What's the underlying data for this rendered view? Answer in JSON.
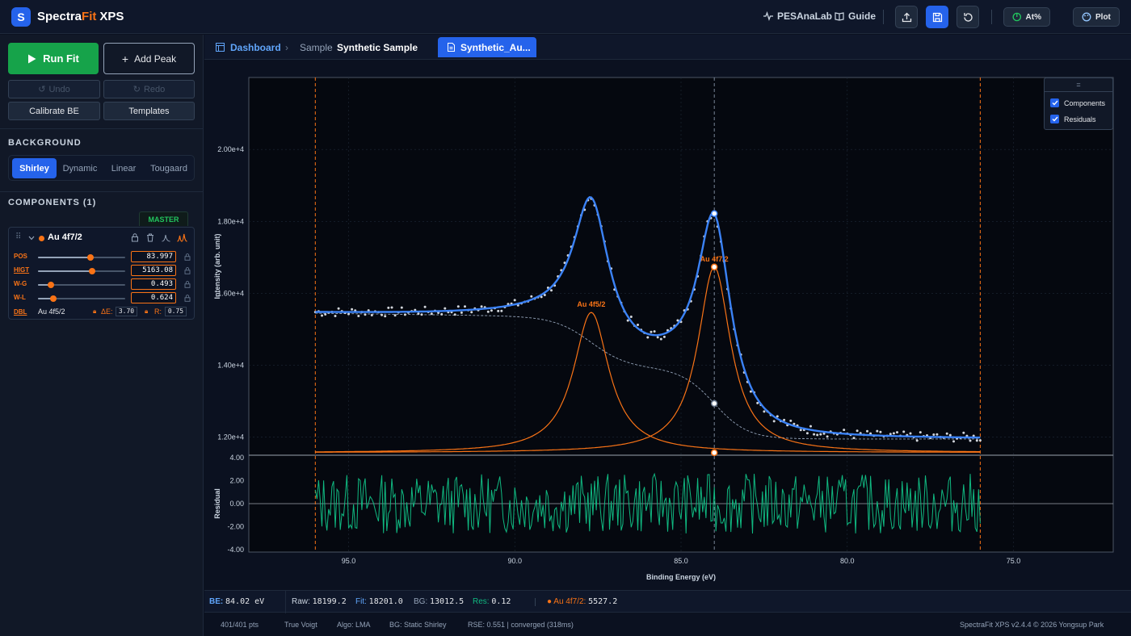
{
  "header": {
    "logo_letter": "S",
    "brand_main": "Spectra",
    "brand_fit": "Fit",
    "brand_suffix": "XPS",
    "links": [
      {
        "label": "PESAnaLab",
        "icon": "activity-icon"
      },
      {
        "label": "Guide",
        "icon": "book-icon"
      }
    ],
    "at_label": "At%",
    "plot_label": "Plot"
  },
  "sidebar": {
    "run_fit": "Run Fit",
    "add_peak": "Add Peak",
    "undo": "Undo",
    "redo": "Redo",
    "calibrate": "Calibrate BE",
    "templates": "Templates",
    "background_title": "BACKGROUND",
    "background_tabs": [
      "Shirley",
      "Dynamic",
      "Linear",
      "Tougaard"
    ],
    "background_active": "Shirley",
    "components_title": "COMPONENTS (1)",
    "master_label": "MASTER",
    "component": {
      "name": "Au 4f7/2",
      "color": "#f97316",
      "params": [
        {
          "label": "POS",
          "value": "83.997",
          "fraction": 0.6
        },
        {
          "label": "HIGT",
          "value": "5163.08",
          "fraction": 0.62
        },
        {
          "label": "W-G",
          "value": "0.493",
          "fraction": 0.15
        },
        {
          "label": "W-L",
          "value": "0.624",
          "fraction": 0.18
        }
      ],
      "dbl_label": "DBL",
      "dbl_name": "Au 4f5/2",
      "delta_e_label": "ΔE:",
      "delta_e": "3.70",
      "ratio_label": "R:",
      "ratio": "0.75"
    }
  },
  "tabs": {
    "dashboard": "Dashboard",
    "sample_label": "Sample",
    "sample_name": "Synthetic Sample",
    "file_tab": "Synthetic_Au..."
  },
  "legend": {
    "icon": "=",
    "items": [
      "Components",
      "Residuals"
    ]
  },
  "chart_data": {
    "type": "line",
    "xlabel": "Binding Energy (eV)",
    "ylabel": "Intensity (arb. unit)",
    "residual_ylabel": "Residual",
    "x_reversed": true,
    "xlim": [
      72,
      98
    ],
    "ylim": [
      11500,
      22000
    ],
    "residual_ylim": [
      -4.2,
      4.2
    ],
    "x_ticks": [
      "95.0",
      "90.0",
      "85.0",
      "80.0",
      "75.0"
    ],
    "y_ticks": [
      "1.20e+4",
      "1.40e+4",
      "1.60e+4",
      "1.80e+4",
      "2.00e+4"
    ],
    "residual_ticks": [
      "4.00",
      "2.00",
      "0.00",
      "-2.00",
      "-4.00"
    ],
    "range_markers": [
      96.0,
      76.0
    ],
    "cursor_x": 84.0,
    "components": [
      {
        "name": "Au 4f5/2",
        "center": 87.7,
        "height": 3900,
        "width": 0.65,
        "color": "#f97316"
      },
      {
        "name": "Au 4f7/2",
        "center": 84.0,
        "height": 5163,
        "width": 0.6,
        "color": "#f97316"
      }
    ],
    "background": {
      "type": "Shirley",
      "high": 15350,
      "low": 11950
    },
    "series": [
      {
        "name": "Fit",
        "color": "#3b82f6"
      },
      {
        "name": "Raw",
        "color": "#d1d5db"
      },
      {
        "name": "Background",
        "color": "#94a3b8"
      },
      {
        "name": "Residual",
        "color": "#10b981"
      }
    ]
  },
  "status": {
    "be_label": "BE:",
    "be_value": "84.02 eV",
    "raw_label": "Raw:",
    "raw_value": "18199.2",
    "fit_label": "Fit:",
    "fit_value": "18201.0",
    "bg_label": "BG:",
    "bg_value": "13012.5",
    "res_label": "Res:",
    "res_value": "0.12",
    "comp_label": "Au 4f7/2:",
    "comp_value": "5527.2",
    "pts": "401/401 pts",
    "profile": "True Voigt",
    "algo": "Algo: LMA",
    "bg_mode": "BG: Static Shirley",
    "rse": "RSE: 0.551 | converged (318ms)",
    "copyright": "SpectraFit XPS v2.4.4 © 2026 Yongsup Park"
  },
  "colors": {
    "accent": "#2563eb",
    "run": "#16a34a",
    "component": "#f97316",
    "fit": "#3b82f6",
    "residual": "#10b981"
  }
}
